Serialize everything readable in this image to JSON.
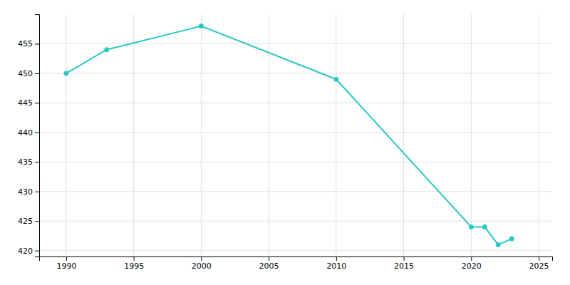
{
  "chart_data": {
    "type": "line",
    "x": [
      1990,
      1993,
      2000,
      2010,
      2020,
      2021,
      2022,
      2023
    ],
    "values": [
      450,
      454,
      458,
      449,
      424,
      424,
      421,
      422
    ],
    "color": "#2ec8c4",
    "marker": "circle",
    "xlim": [
      1988,
      2026
    ],
    "ylim": [
      419,
      460
    ],
    "xticks": [
      1990,
      1995,
      2000,
      2005,
      2010,
      2015,
      2020,
      2025
    ],
    "yticks": [
      420,
      425,
      430,
      435,
      440,
      445,
      450,
      455
    ],
    "grid": true
  }
}
